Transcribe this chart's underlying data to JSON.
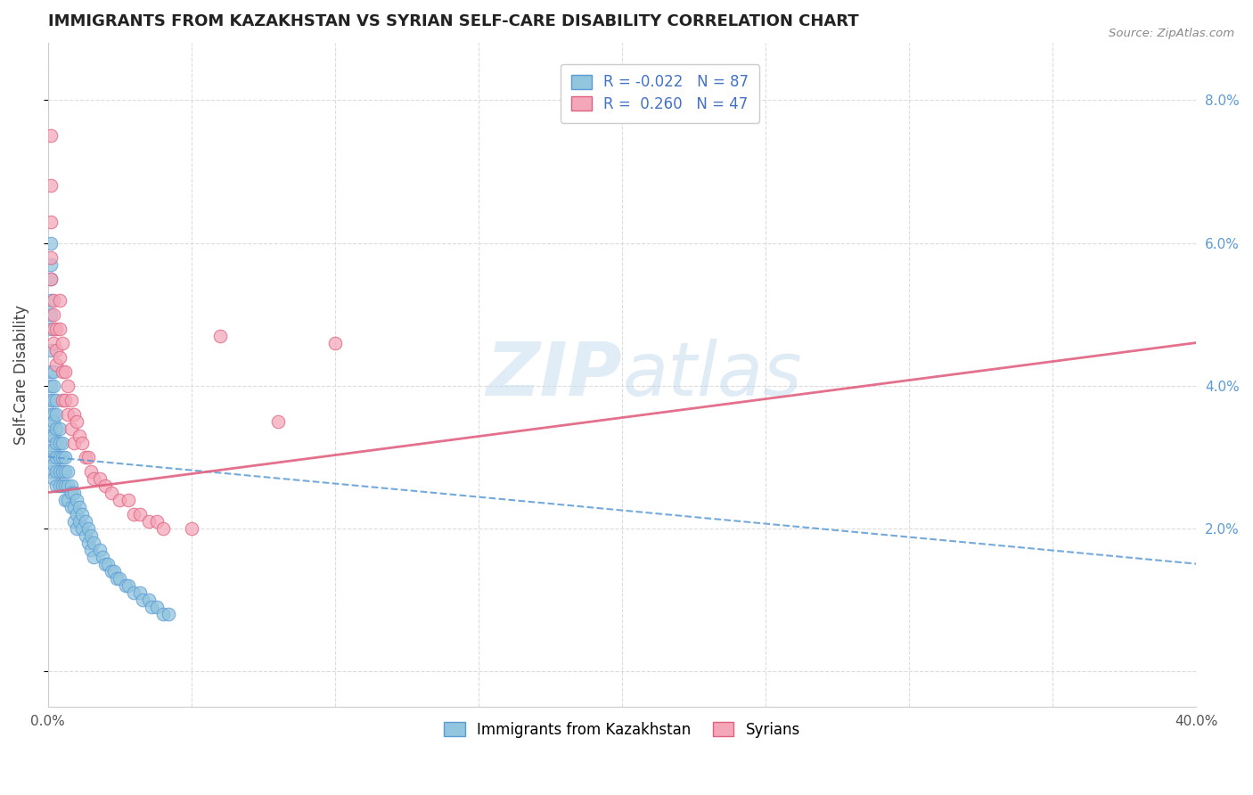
{
  "title": "IMMIGRANTS FROM KAZAKHSTAN VS SYRIAN SELF-CARE DISABILITY CORRELATION CHART",
  "source": "Source: ZipAtlas.com",
  "ylabel": "Self-Care Disability",
  "xlim": [
    0.0,
    0.4
  ],
  "ylim": [
    -0.005,
    0.088
  ],
  "xticks": [
    0.0,
    0.05,
    0.1,
    0.15,
    0.2,
    0.25,
    0.3,
    0.35,
    0.4
  ],
  "xticklabels": [
    "0.0%",
    "",
    "",
    "",
    "",
    "",
    "",
    "",
    "40.0%"
  ],
  "yticks_right": [
    0.0,
    0.02,
    0.04,
    0.06,
    0.08
  ],
  "yticklabels_right": [
    "",
    "2.0%",
    "4.0%",
    "6.0%",
    "8.0%"
  ],
  "legend_r1": "R = -0.022",
  "legend_n1": "N = 87",
  "legend_r2": "R =  0.260",
  "legend_n2": "N = 47",
  "color_blue": "#92c5de",
  "color_blue_edge": "#5b9bd5",
  "color_pink": "#f4a7b9",
  "color_pink_edge": "#e06080",
  "color_trend_blue": "#5b9bd5",
  "color_trend_pink": "#e06080",
  "background_color": "#ffffff",
  "watermark_zip": "ZIP",
  "watermark_atlas": "atlas",
  "grid_color": "#d9d9d9",
  "source_text": "Source: ZipAtlas.com",
  "kaz_x": [
    0.001,
    0.001,
    0.001,
    0.001,
    0.001,
    0.001,
    0.001,
    0.001,
    0.001,
    0.001,
    0.001,
    0.001,
    0.001,
    0.001,
    0.001,
    0.001,
    0.002,
    0.002,
    0.002,
    0.002,
    0.002,
    0.002,
    0.002,
    0.002,
    0.002,
    0.003,
    0.003,
    0.003,
    0.003,
    0.003,
    0.003,
    0.003,
    0.004,
    0.004,
    0.004,
    0.004,
    0.004,
    0.005,
    0.005,
    0.005,
    0.005,
    0.006,
    0.006,
    0.006,
    0.006,
    0.007,
    0.007,
    0.007,
    0.008,
    0.008,
    0.008,
    0.009,
    0.009,
    0.009,
    0.01,
    0.01,
    0.01,
    0.011,
    0.011,
    0.012,
    0.012,
    0.013,
    0.013,
    0.014,
    0.014,
    0.015,
    0.015,
    0.016,
    0.016,
    0.018,
    0.019,
    0.02,
    0.021,
    0.022,
    0.023,
    0.024,
    0.025,
    0.027,
    0.028,
    0.03,
    0.032,
    0.033,
    0.035,
    0.036,
    0.038,
    0.04,
    0.042
  ],
  "kaz_y": [
    0.06,
    0.057,
    0.055,
    0.052,
    0.05,
    0.048,
    0.045,
    0.042,
    0.04,
    0.038,
    0.036,
    0.034,
    0.033,
    0.031,
    0.03,
    0.028,
    0.042,
    0.04,
    0.038,
    0.036,
    0.035,
    0.033,
    0.031,
    0.029,
    0.027,
    0.038,
    0.036,
    0.034,
    0.032,
    0.03,
    0.028,
    0.026,
    0.034,
    0.032,
    0.03,
    0.028,
    0.026,
    0.032,
    0.03,
    0.028,
    0.026,
    0.03,
    0.028,
    0.026,
    0.024,
    0.028,
    0.026,
    0.024,
    0.026,
    0.025,
    0.023,
    0.025,
    0.023,
    0.021,
    0.024,
    0.022,
    0.02,
    0.023,
    0.021,
    0.022,
    0.02,
    0.021,
    0.019,
    0.02,
    0.018,
    0.019,
    0.017,
    0.018,
    0.016,
    0.017,
    0.016,
    0.015,
    0.015,
    0.014,
    0.014,
    0.013,
    0.013,
    0.012,
    0.012,
    0.011,
    0.011,
    0.01,
    0.01,
    0.009,
    0.009,
    0.008,
    0.008
  ],
  "syr_x": [
    0.001,
    0.001,
    0.001,
    0.001,
    0.001,
    0.002,
    0.002,
    0.002,
    0.002,
    0.003,
    0.003,
    0.003,
    0.004,
    0.004,
    0.004,
    0.005,
    0.005,
    0.005,
    0.006,
    0.006,
    0.007,
    0.007,
    0.008,
    0.008,
    0.009,
    0.009,
    0.01,
    0.011,
    0.012,
    0.013,
    0.014,
    0.015,
    0.016,
    0.018,
    0.02,
    0.022,
    0.025,
    0.028,
    0.03,
    0.032,
    0.035,
    0.038,
    0.04,
    0.05,
    0.06,
    0.08,
    0.1
  ],
  "syr_y": [
    0.075,
    0.068,
    0.063,
    0.058,
    0.055,
    0.052,
    0.05,
    0.048,
    0.046,
    0.048,
    0.045,
    0.043,
    0.052,
    0.048,
    0.044,
    0.046,
    0.042,
    0.038,
    0.042,
    0.038,
    0.04,
    0.036,
    0.038,
    0.034,
    0.036,
    0.032,
    0.035,
    0.033,
    0.032,
    0.03,
    0.03,
    0.028,
    0.027,
    0.027,
    0.026,
    0.025,
    0.024,
    0.024,
    0.022,
    0.022,
    0.021,
    0.021,
    0.02,
    0.02,
    0.047,
    0.035,
    0.046
  ],
  "trend_kaz_x0": 0.0,
  "trend_kaz_y0": 0.03,
  "trend_kaz_x1": 0.4,
  "trend_kaz_y1": 0.015,
  "trend_syr_x0": 0.0,
  "trend_syr_y0": 0.025,
  "trend_syr_x1": 0.4,
  "trend_syr_y1": 0.046
}
